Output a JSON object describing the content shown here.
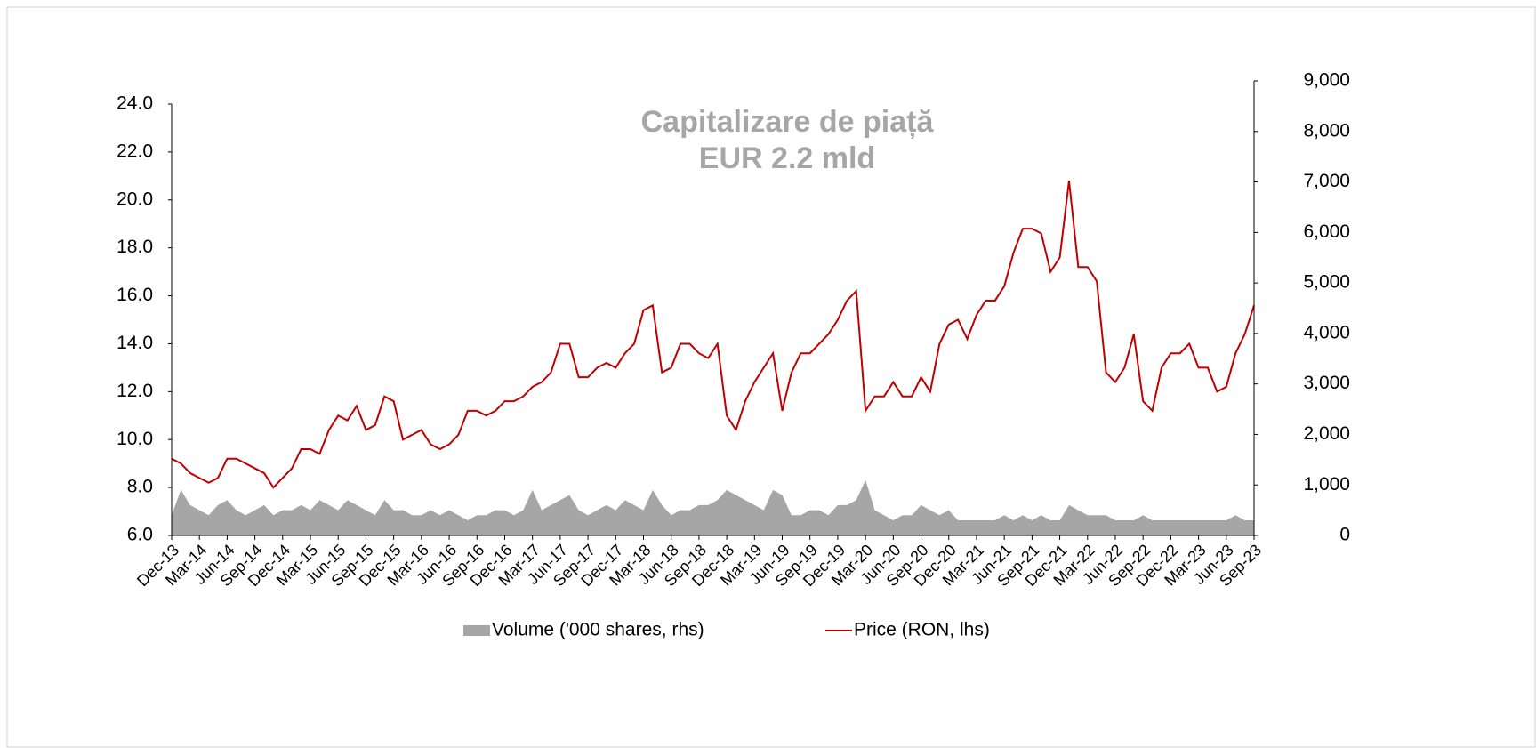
{
  "chart_data": {
    "type": "line",
    "title": "Capitalizare de piață",
    "subtitle": "EUR 2.2 mld",
    "categories": [
      "Dec-13",
      null,
      null,
      "Mar-14",
      null,
      null,
      "Jun-14",
      null,
      null,
      "Sep-14",
      null,
      null,
      "Dec-14",
      null,
      null,
      "Mar-15",
      null,
      null,
      "Jun-15",
      null,
      null,
      "Sep-15",
      null,
      null,
      "Dec-15",
      null,
      null,
      "Mar-16",
      null,
      null,
      "Jun-16",
      null,
      null,
      "Sep-16",
      null,
      null,
      "Dec-16",
      null,
      null,
      "Mar-17",
      null,
      null,
      "Jun-17",
      null,
      null,
      "Sep-17",
      null,
      null,
      "Dec-17",
      null,
      null,
      "Mar-18",
      null,
      null,
      "Jun-18",
      null,
      null,
      "Sep-18",
      null,
      null,
      "Dec-18",
      null,
      null,
      "Mar-19",
      null,
      null,
      "Jun-19",
      null,
      null,
      "Sep-19",
      null,
      null,
      "Dec-19",
      null,
      null,
      "Mar-20",
      null,
      null,
      "Jun-20",
      null,
      null,
      "Sep-20",
      null,
      null,
      "Dec-20",
      null,
      null,
      "Mar-21",
      null,
      null,
      "Jun-21",
      null,
      null,
      "Sep-21",
      null,
      null,
      "Dec-21",
      null,
      null,
      "Mar-22",
      null,
      null,
      "Jun-22",
      null,
      null,
      "Sep-22",
      null,
      null,
      "Dec-22",
      null,
      null,
      "Mar-23",
      null,
      null,
      "Jun-23",
      null,
      null,
      "Sep-23"
    ],
    "series": [
      {
        "name": "Volume ('000 shares, rhs)",
        "type": "area",
        "axis": "y2",
        "color": "#a6a6a6",
        "values": [
          400,
          900,
          600,
          500,
          400,
          600,
          700,
          500,
          400,
          500,
          600,
          400,
          500,
          500,
          600,
          500,
          700,
          600,
          500,
          700,
          600,
          500,
          400,
          700,
          500,
          500,
          400,
          400,
          500,
          400,
          500,
          400,
          300,
          400,
          400,
          500,
          500,
          400,
          500,
          900,
          500,
          600,
          700,
          800,
          500,
          400,
          500,
          600,
          500,
          700,
          600,
          500,
          900,
          600,
          400,
          500,
          500,
          600,
          600,
          700,
          900,
          800,
          700,
          600,
          500,
          900,
          800,
          400,
          400,
          500,
          500,
          400,
          600,
          600,
          700,
          1100,
          500,
          400,
          300,
          400,
          400,
          600,
          500,
          400,
          500,
          300,
          300,
          300,
          300,
          300,
          400,
          300,
          400,
          300,
          400,
          300,
          300,
          600,
          500,
          400,
          400,
          400,
          300,
          300,
          300,
          400,
          300,
          300,
          300,
          300,
          300,
          300,
          300,
          300,
          300,
          400,
          300,
          300
        ]
      },
      {
        "name": "Price (RON, lhs)",
        "type": "line",
        "color": "#c00000",
        "values": [
          9.2,
          9.0,
          8.6,
          8.4,
          8.2,
          8.4,
          9.2,
          9.2,
          9.0,
          8.8,
          8.6,
          8.0,
          8.4,
          8.8,
          9.6,
          9.6,
          9.4,
          10.4,
          11.0,
          10.8,
          11.4,
          10.4,
          10.6,
          11.8,
          11.6,
          10.0,
          10.2,
          10.4,
          9.8,
          9.6,
          9.8,
          10.2,
          11.2,
          11.2,
          11.0,
          11.2,
          11.6,
          11.6,
          11.8,
          12.2,
          12.4,
          12.8,
          14.0,
          14.0,
          12.6,
          12.6,
          13.0,
          13.2,
          13.0,
          13.6,
          14.0,
          15.4,
          15.6,
          12.8,
          13.0,
          14.0,
          14.0,
          13.6,
          13.4,
          14.0,
          11.0,
          10.4,
          11.6,
          12.4,
          13.0,
          13.6,
          11.2,
          12.8,
          13.6,
          13.6,
          14.0,
          14.4,
          15.0,
          15.8,
          16.2,
          11.2,
          11.8,
          11.8,
          12.4,
          11.8,
          11.8,
          12.6,
          12.0,
          14.0,
          14.8,
          15.0,
          14.2,
          15.2,
          15.8,
          15.8,
          16.4,
          17.8,
          18.8,
          18.8,
          18.6,
          17.0,
          17.6,
          20.8,
          17.2,
          17.2,
          16.6,
          12.8,
          12.4,
          13.0,
          14.4,
          11.6,
          11.2,
          13.0,
          13.6,
          13.6,
          14.0,
          13.0,
          13.0,
          12.0,
          12.2,
          13.6,
          14.4,
          15.6
        ]
      }
    ],
    "ylim": [
      6,
      24
    ],
    "yticks": [
      {
        "value": 6,
        "label": "6.0"
      },
      {
        "value": 8,
        "label": "8.0"
      },
      {
        "value": 10,
        "label": "10.0"
      },
      {
        "value": 12,
        "label": "12.0"
      },
      {
        "value": 14,
        "label": "14.0"
      },
      {
        "value": 16,
        "label": "16.0"
      },
      {
        "value": 18,
        "label": "18.0"
      },
      {
        "value": 20,
        "label": "20.0"
      },
      {
        "value": 22,
        "label": "22.0"
      },
      {
        "value": 24,
        "label": "24.0"
      }
    ],
    "y2lim": [
      0,
      9000
    ],
    "y2ticks": [
      0,
      {
        "value": 1000,
        "label": "1,000"
      },
      {
        "value": 2000,
        "label": "2,000"
      },
      {
        "value": 3000,
        "label": "3,000"
      },
      {
        "value": 4000,
        "label": "4,000"
      },
      {
        "value": 5000,
        "label": "5,000"
      },
      {
        "value": 6000,
        "label": "6,000"
      },
      {
        "value": 7000,
        "label": "7,000"
      },
      {
        "value": 8000,
        "label": "8,000"
      },
      {
        "value": 9000,
        "label": "9,000"
      }
    ],
    "grid": false,
    "legend": "bottom"
  }
}
